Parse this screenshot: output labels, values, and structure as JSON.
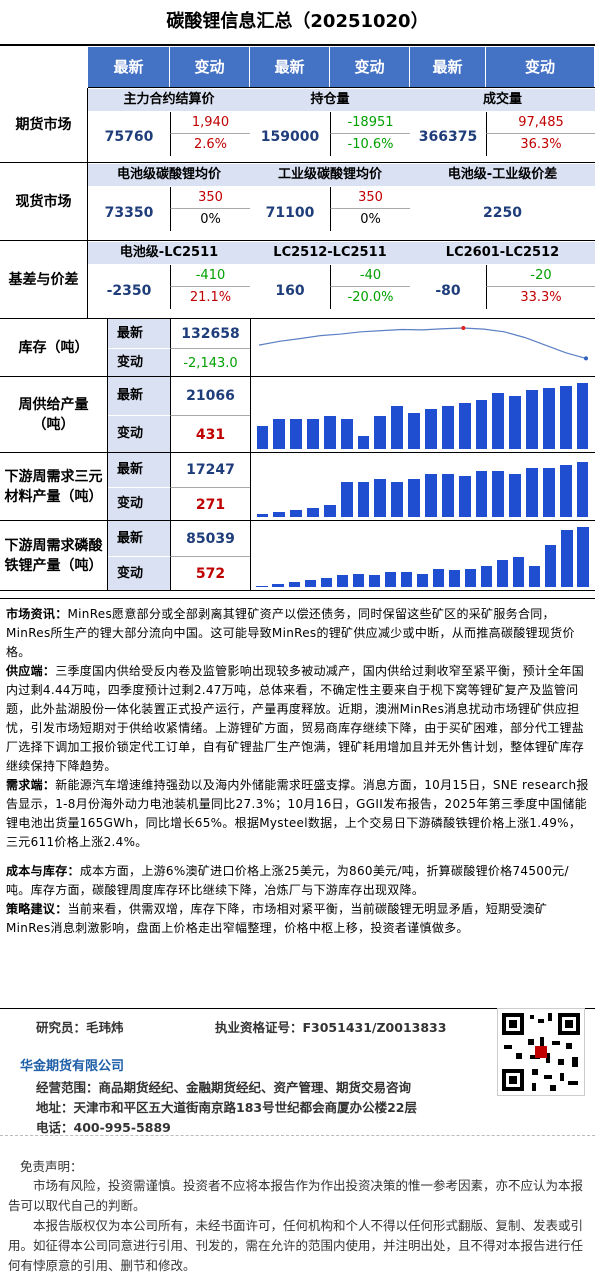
{
  "title": "碳酸锂信息汇总（20251020）",
  "header": [
    "最新",
    "变动",
    "最新",
    "变动",
    "最新",
    "变动"
  ],
  "futures": {
    "label": "期货市场",
    "cols": [
      "主力合约结算价",
      "持仓量",
      "成交量"
    ],
    "c1": {
      "v": "75760",
      "a": "1,940",
      "b": "2.6%"
    },
    "c2": {
      "v": "159000",
      "a": "-18951",
      "b": "-10.6%"
    },
    "c3": {
      "v": "366375",
      "a": "97,485",
      "b": "36.3%"
    }
  },
  "spot": {
    "label": "现货市场",
    "cols": [
      "电池级碳酸锂均价",
      "工业级碳酸锂均价",
      "电池级-工业级价差"
    ],
    "c1": {
      "v": "73350",
      "a": "350",
      "b": "0%"
    },
    "c2": {
      "v": "71100",
      "a": "350",
      "b": "0%"
    },
    "c3": {
      "v": "2250"
    }
  },
  "basis": {
    "label": "基差与价差",
    "cols": [
      "电池级-LC2511",
      "LC2512-LC2511",
      "LC2601-LC2512"
    ],
    "c1": {
      "v": "-2350",
      "a": "-410",
      "b": "21.1%"
    },
    "c2": {
      "v": "160",
      "a": "-40",
      "b": "-20.0%"
    },
    "c3": {
      "v": "-80",
      "a": "-20",
      "b": "33.3%"
    }
  },
  "stock": {
    "label": "库存（吨）",
    "latest_lbl": "最新",
    "chg_lbl": "变动",
    "latest": "132658",
    "chg": "-2,143.0",
    "trend": [
      0.55,
      0.65,
      0.72,
      0.8,
      0.84,
      0.9,
      0.93,
      0.96,
      0.95,
      0.98,
      1.0,
      0.97,
      0.9,
      0.75,
      0.55,
      0.35,
      0.2
    ]
  },
  "supply": {
    "label": "周供给产量（吨）",
    "latest_lbl": "最新",
    "chg_lbl": "变动",
    "latest": "21066",
    "chg": "431",
    "bars": [
      0.35,
      0.45,
      0.45,
      0.45,
      0.5,
      0.45,
      0.2,
      0.5,
      0.65,
      0.55,
      0.6,
      0.65,
      0.7,
      0.75,
      0.85,
      0.8,
      0.9,
      0.92,
      0.95,
      1.0
    ]
  },
  "ternary": {
    "label": "下游周需求三元材料产量（吨）",
    "latest_lbl": "最新",
    "chg_lbl": "变动",
    "latest": "17247",
    "chg": "271",
    "bars": [
      0.05,
      0.08,
      0.12,
      0.15,
      0.2,
      0.6,
      0.6,
      0.65,
      0.6,
      0.65,
      0.75,
      0.75,
      0.7,
      0.8,
      0.8,
      0.75,
      0.85,
      0.85,
      0.9,
      0.95
    ]
  },
  "lfp": {
    "label": "下游周需求磷酸铁锂产量（吨）",
    "latest_lbl": "最新",
    "chg_lbl": "变动",
    "latest": "85039",
    "chg": "572",
    "bars": [
      0.02,
      0.05,
      0.08,
      0.12,
      0.15,
      0.2,
      0.22,
      0.2,
      0.25,
      0.25,
      0.22,
      0.3,
      0.28,
      0.3,
      0.35,
      0.45,
      0.5,
      0.35,
      0.7,
      0.95,
      1.0
    ]
  },
  "text": [
    {
      "h": "市场资讯：",
      "t": "MinRes愿意部分或全部剥离其锂矿资产以偿还债务，同时保留这些矿区的采矿服务合同，MinRes所生产的锂大部分流向中国。这可能导致MinRes的锂矿供应减少或中断，从而推高碳酸锂现货价格。"
    },
    {
      "h": "供应端：",
      "t": "三季度国内供给受反内卷及监管影响出现较多被动减产，国内供给过剩收窄至紧平衡，预计全年国内过剩4.44万吨，四季度预计过剩2.47万吨，总体来看，不确定性主要来自于枧下窝等锂矿复产及监管问题，此外盐湖股份一体化装置正式投产运行，产量再度释放。近期，澳洲MinRes消息扰动市场锂矿供应担忧，引发市场短期对于供给收紧情绪。上游锂矿方面，贸易商库存继续下降，由于买矿困难，部分代工锂盐厂选择下调加工报价锁定代工订单，自有矿锂盐厂生产饱满，锂矿耗用增加且并无外售计划，整体锂矿库存继续保持下降趋势。"
    },
    {
      "h": "需求端：",
      "t": "新能源汽车增速维持强劲以及海内外储能需求旺盛支撑。消息方面，10月15日，SNE research报告显示，1-8月份海外动力电池装机量同比27.3%；10月16日，GGII发布报告，2025年第三季度中国储能锂电池出货量165GWh，同比增长65%。根据Mysteel数据，上个交易日下游磷酸铁锂价格上涨1.49%，三元611价格上涨2.4%。"
    },
    {
      "h": "成本与库存：",
      "t": "成本方面，上游6%澳矿进口价格上涨25美元，为860美元/吨，折算碳酸锂价格74500元/吨。库存方面，碳酸锂周度库存环比继续下降，冶炼厂与下游库存出现双降。"
    },
    {
      "h": "策略建议：",
      "t": "当前来看，供需双增，库存下降，市场相对紧平衡，当前碳酸锂无明显矛盾，短期受澳矿MinRes消息刺激影响，盘面上价格走出窄幅整理，价格中枢上移，投资者谨慎做多。"
    }
  ],
  "footer": {
    "researcher": "研究员：毛玮炜",
    "license": "执业资格证号：F3051431/Z0013833",
    "company": "华金期货有限公司",
    "scope": "经营范围：商品期货经纪、金融期货经纪、资产管理、期货交易咨询",
    "address": "地址：天津市和平区五大道街南京路183号世纪都会商厦办公楼22层",
    "phone": "电话：400-995-5889",
    "disclaimer_title": "免责声明：",
    "d1": "市场有风险，投资需谨慎。投资者不应将本报告作为作出投资决策的惟一参考因素，亦不应认为本报告可以取代自己的判断。",
    "d2": "本报告版权仅为本公司所有，未经书面许可，任何机构和个人不得以任何形式翻版、复制、发表或引用。如征得本公司同意进行引用、刊发的，需在允许的范围内使用，并注明出处，且不得对本报告进行任何有悖原意的引用、删节和修改。"
  }
}
